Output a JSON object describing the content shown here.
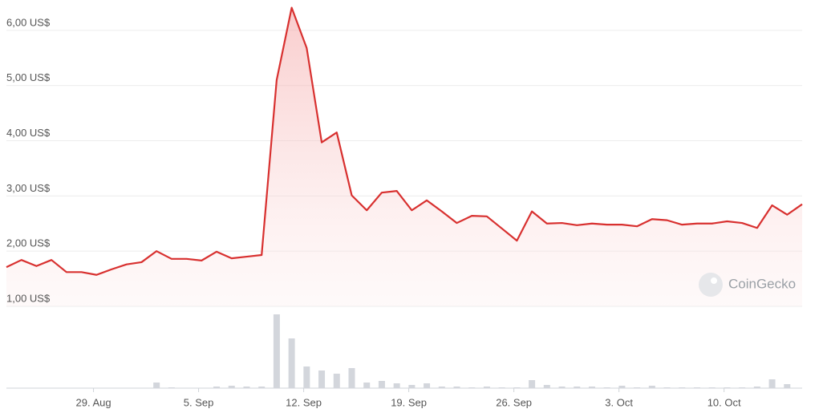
{
  "chart_data": {
    "type": "line",
    "watermark": "CoinGecko",
    "color": "#d8302f",
    "volume_color": "#d3d6dc",
    "grid": true,
    "xlim": [
      0,
      53
    ],
    "xticks": [
      {
        "value": 5.8,
        "label": "29. Aug"
      },
      {
        "value": 12.8,
        "label": "5. Sep"
      },
      {
        "value": 19.8,
        "label": "12. Sep"
      },
      {
        "value": 26.8,
        "label": "19. Sep"
      },
      {
        "value": 33.8,
        "label": "26. Sep"
      },
      {
        "value": 40.8,
        "label": "3. Oct"
      },
      {
        "value": 47.8,
        "label": "10. Oct"
      }
    ],
    "ylim": [
      1,
      6.55
    ],
    "yticks": [
      {
        "value": 1,
        "label": "1,00 US$"
      },
      {
        "value": 2,
        "label": "2,00 US$"
      },
      {
        "value": 3,
        "label": "3,00 US$"
      },
      {
        "value": 4,
        "label": "4,00 US$"
      },
      {
        "value": 5,
        "label": "5,00 US$"
      },
      {
        "value": 6,
        "label": "6,00 US$"
      }
    ],
    "y2lim": [
      0,
      100
    ],
    "series": [
      {
        "values": [
          1.71,
          1.84,
          1.73,
          1.84,
          1.62,
          1.62,
          1.57,
          1.67,
          1.76,
          1.8,
          2.0,
          1.86,
          1.86,
          1.83,
          1.99,
          1.87,
          1.9,
          1.93,
          5.1,
          6.41,
          5.68,
          3.97,
          4.15,
          3.01,
          2.74,
          3.06,
          3.09,
          2.74,
          2.92,
          2.72,
          2.51,
          2.64,
          2.63,
          2.41,
          2.19,
          2.72,
          2.5,
          2.51,
          2.47,
          2.5,
          2.48,
          2.48,
          2.45,
          2.58,
          2.56,
          2.48,
          2.5,
          2.5,
          2.54,
          2.51,
          2.42,
          2.83,
          2.66,
          2.85
        ]
      },
      {
        "axis": "y2",
        "values": [
          0,
          0,
          0,
          0,
          0,
          0,
          0,
          0,
          0,
          0,
          7,
          1,
          0,
          0,
          2,
          3,
          2,
          2,
          92,
          62,
          27,
          22,
          18,
          25,
          7,
          9,
          6,
          4,
          6,
          2,
          2,
          1,
          2,
          1,
          1,
          10,
          4,
          2,
          2,
          2,
          1,
          3,
          1,
          3,
          1,
          1,
          1,
          1,
          1,
          1,
          2,
          11,
          5,
          0
        ]
      }
    ]
  }
}
